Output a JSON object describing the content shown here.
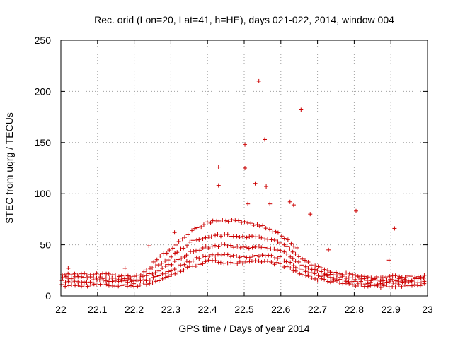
{
  "chart_data": {
    "type": "scatter",
    "title": "Rec. orid (Lon=20, Lat=41, h=HE), days 021-022, 2014, window 004",
    "xlabel": "GPS time / Days of year 2014",
    "ylabel": "STEC from uqrg / TECUs",
    "xlim": [
      22,
      23
    ],
    "ylim": [
      0,
      250
    ],
    "xticks": [
      "22",
      "22.1",
      "22.2",
      "22.3",
      "22.4",
      "22.5",
      "22.6",
      "22.7",
      "22.8",
      "22.9",
      "23"
    ],
    "yticks": [
      "0",
      "50",
      "100",
      "150",
      "200",
      "250"
    ],
    "grid": true,
    "marker": "plus",
    "color": "#cc0000",
    "outliers": [
      [
        22.54,
        210
      ],
      [
        22.655,
        182
      ],
      [
        22.556,
        153
      ],
      [
        22.502,
        148
      ],
      [
        22.502,
        125
      ],
      [
        22.43,
        126
      ],
      [
        22.43,
        108
      ],
      [
        22.56,
        107
      ],
      [
        22.53,
        110
      ],
      [
        22.51,
        90
      ],
      [
        22.57,
        90
      ],
      [
        22.625,
        92
      ],
      [
        22.635,
        89
      ],
      [
        22.68,
        80
      ],
      [
        22.805,
        83
      ],
      [
        22.91,
        66
      ],
      [
        22.31,
        62
      ],
      [
        22.24,
        49
      ],
      [
        22.73,
        45
      ],
      [
        22.895,
        35
      ],
      [
        22.175,
        27
      ],
      [
        22.02,
        27
      ]
    ],
    "bands": [
      {
        "x": [
          22.0,
          22.05,
          22.1,
          22.15,
          22.2,
          22.25,
          22.3,
          22.35,
          22.4,
          22.45,
          22.5,
          22.55,
          22.6,
          22.65,
          22.7,
          22.75,
          22.8,
          22.85,
          22.9,
          22.95,
          23.0
        ],
        "y": [
          10,
          10,
          11,
          10,
          10,
          13,
          20,
          28,
          34,
          33,
          32,
          34,
          31,
          22,
          16,
          14,
          11,
          9,
          10,
          10,
          11
        ]
      },
      {
        "x": [
          22.0,
          22.05,
          22.1,
          22.15,
          22.2,
          22.25,
          22.3,
          22.35,
          22.4,
          22.45,
          22.5,
          22.55,
          22.6,
          22.65,
          22.7,
          22.75,
          22.8,
          22.85,
          22.9,
          22.95,
          23.0
        ],
        "y": [
          14,
          14,
          15,
          14,
          13,
          17,
          25,
          34,
          40,
          40,
          38,
          40,
          37,
          27,
          20,
          17,
          14,
          12,
          13,
          13,
          14
        ]
      },
      {
        "x": [
          22.0,
          22.05,
          22.1,
          22.15,
          22.2,
          22.25,
          22.3,
          22.35,
          22.4,
          22.45,
          22.5,
          22.55,
          22.6,
          22.65,
          22.7,
          22.75,
          22.8,
          22.85,
          22.9,
          22.95,
          23.0
        ],
        "y": [
          18,
          18,
          18,
          17,
          16,
          22,
          31,
          42,
          48,
          50,
          47,
          48,
          44,
          32,
          24,
          20,
          17,
          15,
          16,
          16,
          17
        ]
      },
      {
        "x": [
          22.0,
          22.05,
          22.1,
          22.15,
          22.2,
          22.25,
          22.3,
          22.35,
          22.4,
          22.45,
          22.5,
          22.55,
          22.6,
          22.65,
          22.7,
          22.75,
          22.8,
          22.85,
          22.9,
          22.95,
          23.0
        ],
        "y": [
          22,
          21,
          21,
          20,
          19,
          27,
          38,
          52,
          58,
          60,
          58,
          57,
          52,
          38,
          28,
          23,
          20,
          18,
          19,
          19,
          20
        ]
      },
      {
        "x": [
          22.25,
          22.3,
          22.35,
          22.4,
          22.45,
          22.5,
          22.55,
          22.6,
          22.65
        ],
        "y": [
          32,
          46,
          62,
          72,
          74,
          72,
          68,
          60,
          44
        ]
      }
    ]
  }
}
